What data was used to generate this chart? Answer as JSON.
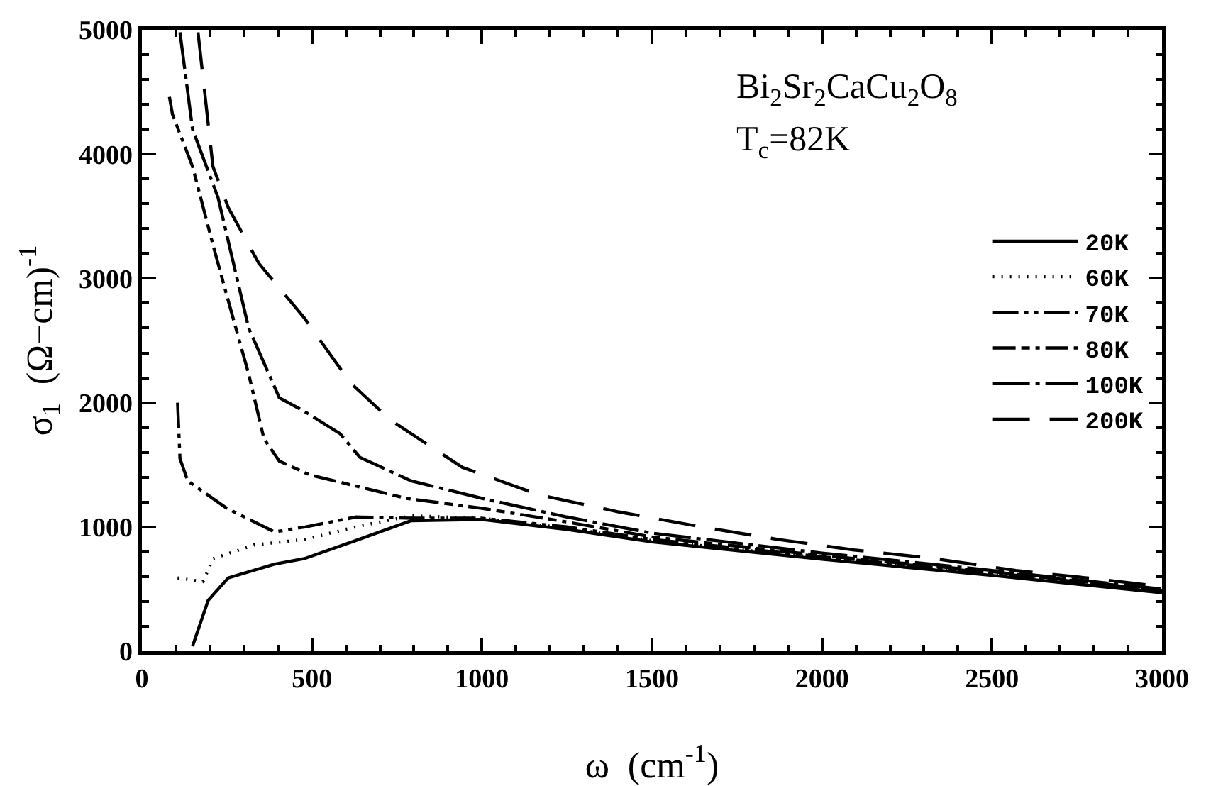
{
  "chart_data": {
    "type": "line",
    "xlabel": "ω  (cm$^{-1}$)",
    "ylabel": "σ$_{1}$  (Ω−cm)$^{-1}$",
    "annotations": [
      "Bi$_{2}$Sr$_{2}$CaCu$_{2}$O$_{8}$",
      "T$_{c}$=82K"
    ],
    "xlim": [
      0,
      3000
    ],
    "xticks": [
      0,
      500,
      1000,
      1500,
      2000,
      2500,
      3000
    ],
    "ylim": [
      0,
      5000
    ],
    "yticks": [
      0,
      1000,
      2000,
      3000,
      4000,
      5000
    ],
    "grid": false,
    "legend": "top right",
    "marker": "none",
    "series": [
      {
        "name": "20K",
        "color": "#000000",
        "line_style": "solid",
        "x": [
          149,
          195,
          254,
          389,
          478,
          628,
          792,
          1000,
          1250,
          1500,
          2000,
          2500,
          3000
        ],
        "values": [
          40,
          410,
          590,
          700,
          745,
          890,
          1050,
          1060,
          980,
          880,
          740,
          610,
          470
        ]
      },
      {
        "name": "60K",
        "color": "#000000",
        "line_style": "dotted",
        "x": [
          105,
          180,
          209,
          330,
          480,
          628,
          792,
          1000,
          1250,
          1500,
          2000,
          2500,
          3000
        ],
        "values": [
          590,
          560,
          745,
          855,
          900,
          1000,
          1090,
          1070,
          990,
          890,
          750,
          620,
          480
        ]
      },
      {
        "name": "70K",
        "color": "#000000",
        "line_style": "dashdotdot",
        "x": [
          105,
          112,
          135,
          250,
          390,
          480,
          630,
          800,
          1000,
          1250,
          1500,
          2000,
          2500,
          3000
        ],
        "values": [
          2000,
          1550,
          1370,
          1150,
          960,
          1000,
          1080,
          1070,
          1070,
          1000,
          900,
          760,
          630,
          490
        ]
      },
      {
        "name": "80K",
        "color": "#000000",
        "line_style": "dashdashdot",
        "x": [
          81,
          90,
          149,
          209,
          254,
          314,
          359,
          404,
          493,
          613,
          777,
          1000,
          1250,
          1500,
          2000,
          2500,
          3000
        ],
        "values": [
          4460,
          4320,
          3900,
          3270,
          2820,
          2230,
          1710,
          1530,
          1420,
          1340,
          1230,
          1150,
          1040,
          920,
          770,
          640,
          490
        ]
      },
      {
        "name": "100K",
        "color": "#000000",
        "line_style": "longdashdot",
        "x": [
          112,
          149,
          224,
          314,
          404,
          478,
          583,
          641,
          792,
          1000,
          1250,
          1500,
          2000,
          2500,
          3000
        ],
        "values": [
          4980,
          4200,
          3650,
          2600,
          2040,
          1930,
          1750,
          1560,
          1370,
          1230,
          1080,
          950,
          790,
          650,
          500
        ]
      },
      {
        "name": "200K",
        "color": "#000000",
        "line_style": "longdash",
        "x": [
          165,
          209,
          254,
          344,
          478,
          613,
          731,
          942,
          1166,
          1404,
          1646,
          1870,
          2094,
          2318,
          2570,
          2812,
          3000
        ],
        "values": [
          4980,
          3900,
          3570,
          3120,
          2680,
          2160,
          1860,
          1480,
          1260,
          1120,
          1000,
          900,
          815,
          750,
          650,
          580,
          520
        ]
      }
    ]
  }
}
